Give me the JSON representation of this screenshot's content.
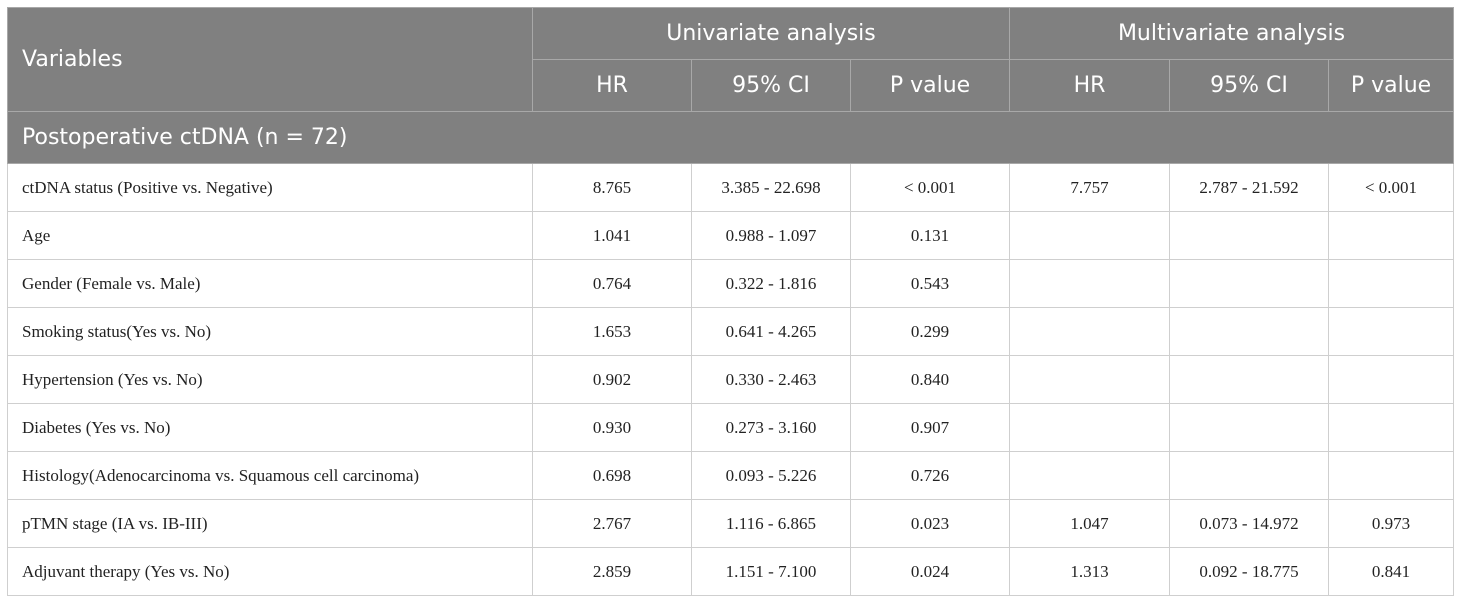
{
  "header": {
    "variables": "Variables",
    "univariate": "Univariate analysis",
    "multivariate": "Multivariate analysis",
    "columns": [
      "HR",
      "95% CI",
      "P value",
      "HR",
      "95% CI",
      "P value"
    ]
  },
  "section": "Postoperative ctDNA (n = 72)",
  "rows": [
    {
      "variable": "ctDNA status (Positive vs. Negative)",
      "u_hr": "8.765",
      "u_ci": "3.385 - 22.698",
      "u_p": "< 0.001",
      "m_hr": "7.757",
      "m_ci": "2.787 - 21.592",
      "m_p": "< 0.001"
    },
    {
      "variable": "Age",
      "u_hr": "1.041",
      "u_ci": "0.988 - 1.097",
      "u_p": "0.131",
      "m_hr": "",
      "m_ci": "",
      "m_p": ""
    },
    {
      "variable": "Gender (Female vs. Male)",
      "u_hr": "0.764",
      "u_ci": "0.322 - 1.816",
      "u_p": "0.543",
      "m_hr": "",
      "m_ci": "",
      "m_p": ""
    },
    {
      "variable": "Smoking status(Yes vs. No)",
      "u_hr": "1.653",
      "u_ci": "0.641 - 4.265",
      "u_p": "0.299",
      "m_hr": "",
      "m_ci": "",
      "m_p": ""
    },
    {
      "variable": "Hypertension (Yes vs. No)",
      "u_hr": "0.902",
      "u_ci": "0.330 - 2.463",
      "u_p": "0.840",
      "m_hr": "",
      "m_ci": "",
      "m_p": ""
    },
    {
      "variable": "Diabetes (Yes vs. No)",
      "u_hr": "0.930",
      "u_ci": "0.273 - 3.160",
      "u_p": "0.907",
      "m_hr": "",
      "m_ci": "",
      "m_p": ""
    },
    {
      "variable": "Histology(Adenocarcinoma vs. Squamous cell carcinoma)",
      "u_hr": "0.698",
      "u_ci": "0.093 - 5.226",
      "u_p": "0.726",
      "m_hr": "",
      "m_ci": "",
      "m_p": ""
    },
    {
      "variable": "pTMN stage (IA vs. IB-III)",
      "u_hr": "2.767",
      "u_ci": "1.116 - 6.865",
      "u_p": "0.023",
      "m_hr": "1.047",
      "m_ci": "0.073 - 14.972",
      "m_p": "0.973"
    },
    {
      "variable": "Adjuvant therapy (Yes vs. No)",
      "u_hr": "2.859",
      "u_ci": "1.151 - 7.100",
      "u_p": "0.024",
      "m_hr": "1.313",
      "m_ci": "0.092 - 18.775",
      "m_p": "0.841"
    }
  ]
}
